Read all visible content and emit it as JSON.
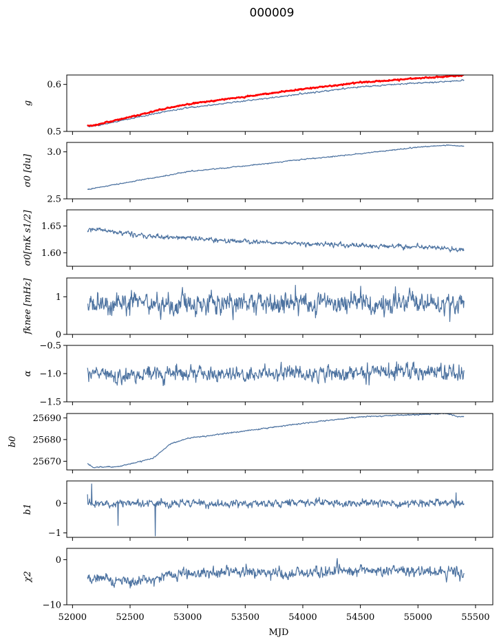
{
  "figure": {
    "title": "000009"
  },
  "chart_data": [
    {
      "type": "line",
      "ylabel": "g",
      "xlim": [
        51950,
        55650
      ],
      "ylim": [
        0.5,
        0.62
      ],
      "yticks": [
        0.5,
        0.6
      ],
      "ytick_labels": [
        "0.5",
        "0.6"
      ],
      "x_range": [
        52130,
        55400
      ],
      "series": [
        {
          "color": "#4c72a0",
          "trend": [
            [
              52130,
              0.51
            ],
            [
              52200,
              0.512
            ],
            [
              52500,
              0.527
            ],
            [
              52800,
              0.542
            ],
            [
              53000,
              0.55
            ],
            [
              53500,
              0.565
            ],
            [
              54000,
              0.58
            ],
            [
              54500,
              0.595
            ],
            [
              55000,
              0.603
            ],
            [
              55400,
              0.608
            ]
          ],
          "noise": 0.0008
        },
        {
          "color": "#ff0000",
          "trend": [
            [
              52130,
              0.512
            ],
            [
              52200,
              0.514
            ],
            [
              52500,
              0.531
            ],
            [
              52800,
              0.548
            ],
            [
              53000,
              0.558
            ],
            [
              53500,
              0.574
            ],
            [
              54000,
              0.59
            ],
            [
              54500,
              0.604
            ],
            [
              55000,
              0.613
            ],
            [
              55400,
              0.619
            ]
          ],
          "noise": 0.0008,
          "width": 2.5
        }
      ]
    },
    {
      "type": "line",
      "ylabel": "σ0 [du]",
      "xlim": [
        51950,
        55650
      ],
      "ylim": [
        2.5,
        3.1
      ],
      "yticks": [
        2.5,
        3.0
      ],
      "ytick_labels": [
        "2.5",
        "3.0"
      ],
      "x_range": [
        52130,
        55400
      ],
      "series": [
        {
          "color": "#4c72a0",
          "trend": [
            [
              52130,
              2.6
            ],
            [
              52500,
              2.68
            ],
            [
              53000,
              2.79
            ],
            [
              53500,
              2.85
            ],
            [
              54000,
              2.92
            ],
            [
              54500,
              2.98
            ],
            [
              55000,
              3.05
            ],
            [
              55250,
              3.07
            ],
            [
              55400,
              3.06
            ]
          ],
          "noise": 0.003
        }
      ]
    },
    {
      "type": "line",
      "ylabel": "σ0[mK s1/2]",
      "xlim": [
        51950,
        55650
      ],
      "ylim": [
        1.575,
        1.68
      ],
      "yticks": [
        1.6,
        1.65
      ],
      "ytick_labels": [
        "1.60",
        "1.65"
      ],
      "x_range": [
        52130,
        55400
      ],
      "series": [
        {
          "color": "#4c72a0",
          "trend": [
            [
              52130,
              1.643
            ],
            [
              52300,
              1.641
            ],
            [
              52600,
              1.633
            ],
            [
              53000,
              1.627
            ],
            [
              53500,
              1.621
            ],
            [
              54000,
              1.617
            ],
            [
              54500,
              1.614
            ],
            [
              55000,
              1.611
            ],
            [
              55400,
              1.606
            ]
          ],
          "noise": 0.0025
        }
      ]
    },
    {
      "type": "line",
      "ylabel": "fknee [mHz]",
      "xlim": [
        51950,
        55650
      ],
      "ylim": [
        0,
        1.5
      ],
      "yticks": [
        0,
        1
      ],
      "ytick_labels": [
        "0",
        "1"
      ],
      "x_range": [
        52130,
        55400
      ],
      "series": [
        {
          "color": "#4c72a0",
          "trend": [
            [
              52130,
              0.8
            ],
            [
              55400,
              0.85
            ]
          ],
          "noise": 0.16
        }
      ]
    },
    {
      "type": "line",
      "ylabel": "α",
      "xlim": [
        51950,
        55650
      ],
      "ylim": [
        -1.5,
        -0.5
      ],
      "yticks": [
        -1.5,
        -1.0,
        -0.5
      ],
      "ytick_labels": [
        "−1.5",
        "−1.0",
        "−0.5"
      ],
      "x_range": [
        52130,
        55400
      ],
      "series": [
        {
          "color": "#4c72a0",
          "trend": [
            [
              52130,
              -1.02
            ],
            [
              55400,
              -0.98
            ]
          ],
          "noise": 0.08
        }
      ]
    },
    {
      "type": "line",
      "ylabel": "b0",
      "xlim": [
        51950,
        55650
      ],
      "ylim": [
        25666,
        25692
      ],
      "yticks": [
        25670,
        25680,
        25690
      ],
      "ytick_labels": [
        "25670",
        "25680",
        "25690"
      ],
      "x_range": [
        52130,
        55400
      ],
      "series": [
        {
          "color": "#4c72a0",
          "trend": [
            [
              52130,
              25669
            ],
            [
              52180,
              25667.2
            ],
            [
              52400,
              25667.5
            ],
            [
              52600,
              25670
            ],
            [
              52700,
              25671.5
            ],
            [
              52760,
              25674
            ],
            [
              52850,
              25678
            ],
            [
              53000,
              25680.5
            ],
            [
              53500,
              25684
            ],
            [
              54000,
              25687.5
            ],
            [
              54500,
              25690.5
            ],
            [
              55000,
              25691.5
            ],
            [
              55250,
              25692
            ],
            [
              55350,
              25690.5
            ],
            [
              55400,
              25690.5
            ]
          ],
          "noise": 0.15
        }
      ]
    },
    {
      "type": "line",
      "ylabel": "b1",
      "xlim": [
        51950,
        55650
      ],
      "ylim": [
        -1.15,
        0.75
      ],
      "yticks": [
        -1,
        0
      ],
      "ytick_labels": [
        "−1",
        "0"
      ],
      "x_range": [
        52130,
        55400
      ],
      "series": [
        {
          "color": "#4c72a0",
          "trend": [
            [
              52130,
              0.0
            ],
            [
              55400,
              0.0
            ]
          ],
          "noise": 0.07,
          "spikes": [
            [
              52130,
              0.3
            ],
            [
              52165,
              0.65
            ],
            [
              52395,
              -0.75
            ],
            [
              52720,
              -1.1
            ],
            [
              55330,
              0.35
            ]
          ]
        }
      ]
    },
    {
      "type": "line",
      "ylabel": "χ2",
      "xlim": [
        51950,
        55650
      ],
      "ylim": [
        -10,
        2.5
      ],
      "yticks": [
        -10,
        0
      ],
      "ytick_labels": [
        "−10",
        "0"
      ],
      "x_range": [
        52130,
        55400
      ],
      "series": [
        {
          "color": "#4c72a0",
          "trend": [
            [
              52130,
              -4
            ],
            [
              52500,
              -5
            ],
            [
              53000,
              -3
            ],
            [
              53500,
              -3
            ],
            [
              54000,
              -3
            ],
            [
              54500,
              -2.5
            ],
            [
              55000,
              -2.5
            ],
            [
              55400,
              -3
            ]
          ],
          "noise": 0.7
        }
      ]
    }
  ],
  "xaxis": {
    "xlabel": "MJD",
    "xticks": [
      52000,
      52500,
      53000,
      53500,
      54000,
      54500,
      55000,
      55500
    ],
    "xtick_labels": [
      "52000",
      "52500",
      "53000",
      "53500",
      "54000",
      "54500",
      "55000",
      "55500"
    ]
  }
}
